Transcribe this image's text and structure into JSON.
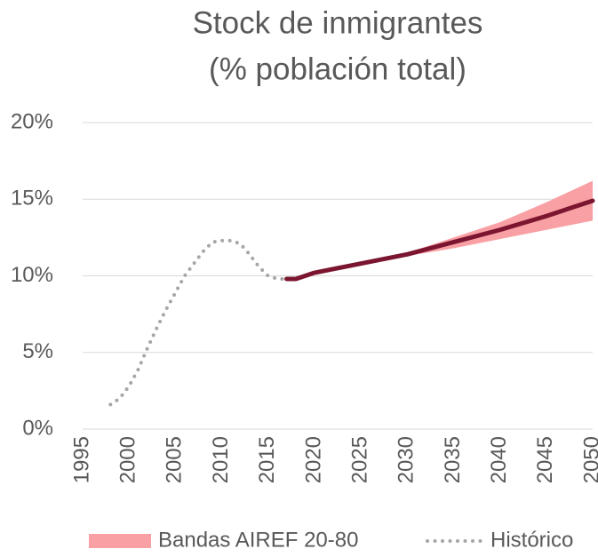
{
  "chart_data": {
    "type": "line",
    "title": "Stock de inmigrantes",
    "subtitle": "(% población total)",
    "xlim": [
      1995,
      2050
    ],
    "xticks": [
      1995,
      2000,
      2005,
      2010,
      2015,
      2020,
      2025,
      2030,
      2035,
      2040,
      2045,
      2050
    ],
    "ylim": [
      0,
      20
    ],
    "yticks": [
      {
        "value": 0,
        "label": "0%"
      },
      {
        "value": 5,
        "label": "5%"
      },
      {
        "value": 10,
        "label": "10%"
      },
      {
        "value": 15,
        "label": "15%"
      },
      {
        "value": 20,
        "label": "20%"
      }
    ],
    "grid": true,
    "legend": "bottom",
    "series": [
      {
        "name": "Bandas AIREF 20-80",
        "type": "band",
        "color": "#f9a0a4",
        "x": [
          2017,
          2020,
          2025,
          2030,
          2035,
          2040,
          2045,
          2050
        ],
        "lower": [
          9.8,
          10.15,
          10.75,
          11.3,
          11.8,
          12.4,
          13.0,
          13.6
        ],
        "upper": [
          9.8,
          10.25,
          10.85,
          11.5,
          12.5,
          13.5,
          14.8,
          16.2
        ]
      },
      {
        "name": "Histórico",
        "type": "dotted",
        "color": "#a6a6a6",
        "x": [
          1998,
          1999,
          2000,
          2001,
          2002,
          2003,
          2004,
          2005,
          2006,
          2007,
          2008,
          2009,
          2010,
          2011,
          2012,
          2013,
          2014,
          2015,
          2016,
          2017
        ],
        "values": [
          1.6,
          2.0,
          2.8,
          3.9,
          5.3,
          6.6,
          7.8,
          8.9,
          10.0,
          10.8,
          11.6,
          12.2,
          12.3,
          12.3,
          12.1,
          11.4,
          10.6,
          10.0,
          9.8,
          9.8
        ]
      },
      {
        "type": "solid",
        "color": "#7b1530",
        "x": [
          2017,
          2018,
          2020,
          2025,
          2030,
          2035,
          2040,
          2045,
          2050
        ],
        "values": [
          9.8,
          9.8,
          10.2,
          10.8,
          11.4,
          12.2,
          13.0,
          13.9,
          14.9
        ]
      }
    ]
  }
}
